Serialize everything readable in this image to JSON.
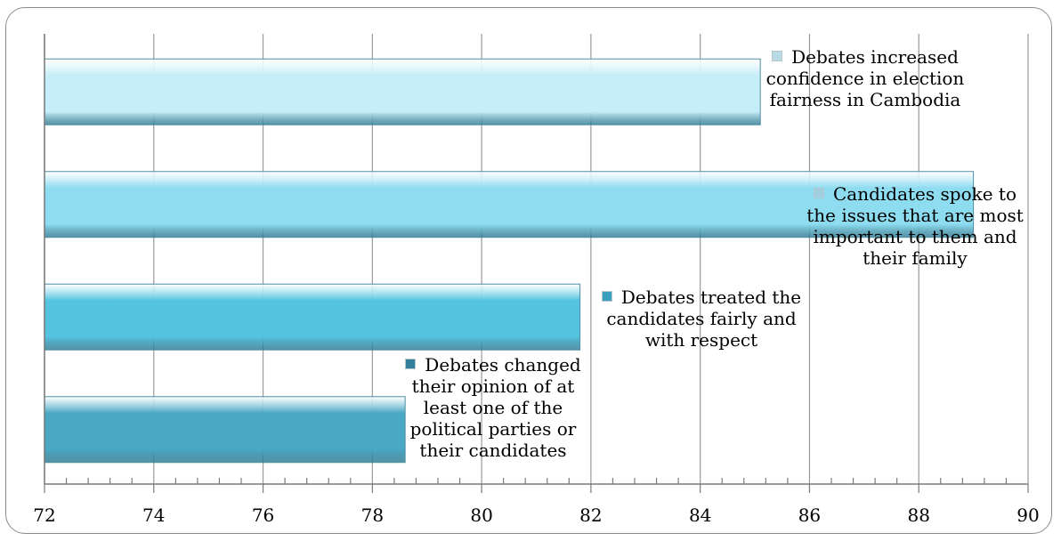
{
  "chart_data": {
    "type": "bar",
    "orientation": "horizontal",
    "xlim": [
      72,
      90
    ],
    "x_ticks": [
      72,
      74,
      76,
      78,
      80,
      82,
      84,
      86,
      88,
      90
    ],
    "grid": true,
    "categories": [
      "Debates increased confidence in election fairness in Cambodia",
      "Candidates spoke to the issues that are most important to them and their family",
      "Debates treated the candidates fairly and with respect",
      "Debates changed their opinion of at least one of the political parties or their candidates"
    ],
    "values": [
      85.1,
      89.0,
      81.8,
      78.6
    ],
    "colors": [
      "#c6eef8",
      "#8edcf0",
      "#55c4e0",
      "#4aa8c4"
    ]
  }
}
